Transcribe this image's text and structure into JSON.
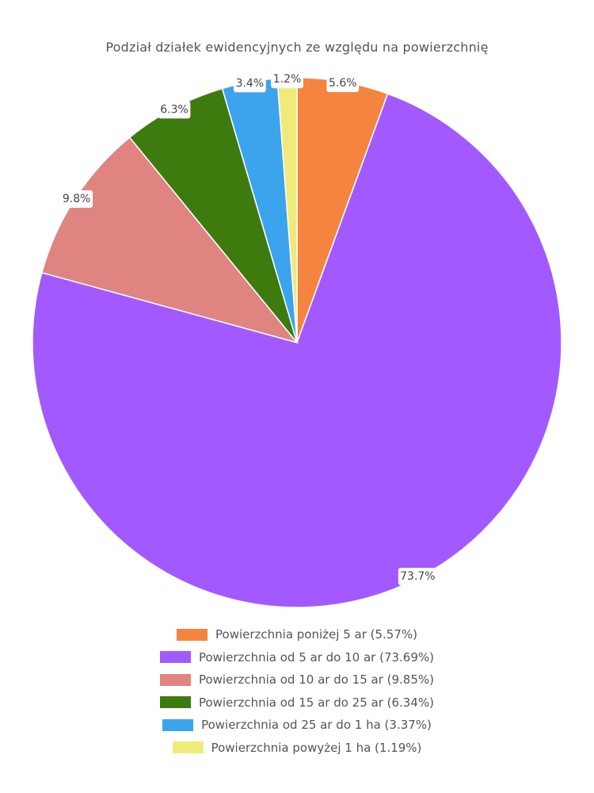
{
  "chart_data": {
    "type": "pie",
    "title": "Podział działek ewidencyjnych ze względu na powierzchnię",
    "slices": [
      {
        "name": "Powierzchnia poniżej 5 ar",
        "value": 5.57,
        "label": "5.6%",
        "legend": "Powierzchnia poniżej 5 ar (5.57%)",
        "color": "#f5843f"
      },
      {
        "name": "Powierzchnia od 5 ar do 10 ar",
        "value": 73.69,
        "label": "73.7%",
        "legend": "Powierzchnia od 5 ar do 10 ar (73.69%)",
        "color": "#a259ff"
      },
      {
        "name": "Powierzchnia od 10 ar do 15 ar",
        "value": 9.85,
        "label": "9.8%",
        "legend": "Powierzchnia od 10 ar do 15 ar (9.85%)",
        "color": "#e08482"
      },
      {
        "name": "Powierzchnia od 15 ar do 25 ar",
        "value": 6.34,
        "label": "6.3%",
        "legend": "Powierzchnia od 15 ar do 25 ar (6.34%)",
        "color": "#3e7b0f"
      },
      {
        "name": "Powierzchnia od 25 ar do 1 ha",
        "value": 3.37,
        "label": "3.4%",
        "legend": "Powierzchnia od 25 ar do 1 ha (3.37%)",
        "color": "#3ca4ec"
      },
      {
        "name": "Powierzchnia powyżej 1 ha",
        "value": 1.19,
        "label": "1.2%",
        "legend": "Powierzchnia powyżej 1 ha (1.19%)",
        "color": "#efeb7a"
      }
    ],
    "legend_position": "bottom"
  }
}
